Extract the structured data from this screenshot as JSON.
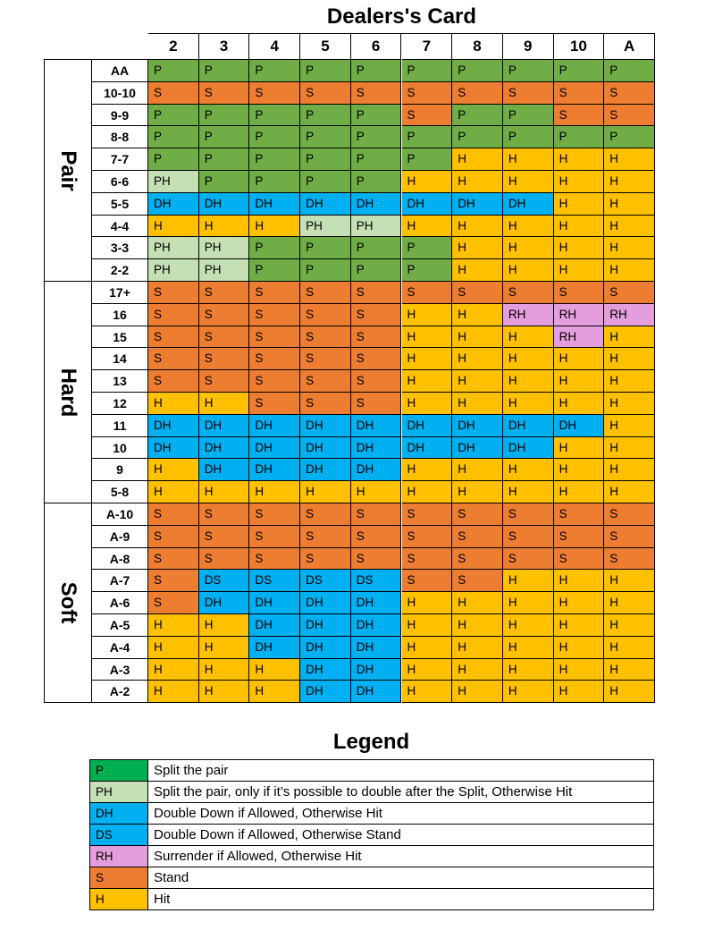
{
  "title": "Dealers's Card",
  "legend_title": "Legend",
  "colors": {
    "P": "#70AD47",
    "PH": "#C5E0B4",
    "DH": "#00B0F0",
    "DS": "#00B0F0",
    "RH": "#E59EDD",
    "S": "#ED7D31",
    "H": "#FFC000"
  },
  "legend_colors": {
    "P": "#00B050",
    "PH": "#C5E0B4",
    "DH": "#00B0F0",
    "DS": "#00B0F0",
    "RH": "#E59EDD",
    "S": "#ED7D31",
    "H": "#FFC000"
  },
  "dealer_cards": [
    "2",
    "3",
    "4",
    "5",
    "6",
    "7",
    "8",
    "9",
    "10",
    "A"
  ],
  "sections": [
    {
      "name": "Pair",
      "rows": [
        {
          "label": "AA",
          "cells": [
            "P",
            "P",
            "P",
            "P",
            "P",
            "P",
            "P",
            "P",
            "P",
            "P"
          ]
        },
        {
          "label": "10-10",
          "cells": [
            "S",
            "S",
            "S",
            "S",
            "S",
            "S",
            "S",
            "S",
            "S",
            "S"
          ]
        },
        {
          "label": "9-9",
          "cells": [
            "P",
            "P",
            "P",
            "P",
            "P",
            "S",
            "P",
            "P",
            "S",
            "S"
          ]
        },
        {
          "label": "8-8",
          "cells": [
            "P",
            "P",
            "P",
            "P",
            "P",
            "P",
            "P",
            "P",
            "P",
            "P"
          ]
        },
        {
          "label": "7-7",
          "cells": [
            "P",
            "P",
            "P",
            "P",
            "P",
            "P",
            "H",
            "H",
            "H",
            "H"
          ]
        },
        {
          "label": "6-6",
          "cells": [
            "PH",
            "P",
            "P",
            "P",
            "P",
            "H",
            "H",
            "H",
            "H",
            "H"
          ]
        },
        {
          "label": "5-5",
          "cells": [
            "DH",
            "DH",
            "DH",
            "DH",
            "DH",
            "DH",
            "DH",
            "DH",
            "H",
            "H"
          ]
        },
        {
          "label": "4-4",
          "cells": [
            "H",
            "H",
            "H",
            "PH",
            "PH",
            "H",
            "H",
            "H",
            "H",
            "H"
          ]
        },
        {
          "label": "3-3",
          "cells": [
            "PH",
            "PH",
            "P",
            "P",
            "P",
            "P",
            "H",
            "H",
            "H",
            "H"
          ]
        },
        {
          "label": "2-2",
          "cells": [
            "PH",
            "PH",
            "P",
            "P",
            "P",
            "P",
            "H",
            "H",
            "H",
            "H"
          ]
        }
      ]
    },
    {
      "name": "Hard",
      "rows": [
        {
          "label": "17+",
          "cells": [
            "S",
            "S",
            "S",
            "S",
            "S",
            "S",
            "S",
            "S",
            "S",
            "S"
          ]
        },
        {
          "label": "16",
          "cells": [
            "S",
            "S",
            "S",
            "S",
            "S",
            "H",
            "H",
            "RH",
            "RH",
            "RH"
          ]
        },
        {
          "label": "15",
          "cells": [
            "S",
            "S",
            "S",
            "S",
            "S",
            "H",
            "H",
            "H",
            "RH",
            "H"
          ]
        },
        {
          "label": "14",
          "cells": [
            "S",
            "S",
            "S",
            "S",
            "S",
            "H",
            "H",
            "H",
            "H",
            "H"
          ]
        },
        {
          "label": "13",
          "cells": [
            "S",
            "S",
            "S",
            "S",
            "S",
            "H",
            "H",
            "H",
            "H",
            "H"
          ]
        },
        {
          "label": "12",
          "cells": [
            "H",
            "H",
            "S",
            "S",
            "S",
            "H",
            "H",
            "H",
            "H",
            "H"
          ]
        },
        {
          "label": "11",
          "cells": [
            "DH",
            "DH",
            "DH",
            "DH",
            "DH",
            "DH",
            "DH",
            "DH",
            "DH",
            "H"
          ]
        },
        {
          "label": "10",
          "cells": [
            "DH",
            "DH",
            "DH",
            "DH",
            "DH",
            "DH",
            "DH",
            "DH",
            "H",
            "H"
          ]
        },
        {
          "label": "9",
          "cells": [
            "H",
            "DH",
            "DH",
            "DH",
            "DH",
            "H",
            "H",
            "H",
            "H",
            "H"
          ]
        },
        {
          "label": "5-8",
          "cells": [
            "H",
            "H",
            "H",
            "H",
            "H",
            "H",
            "H",
            "H",
            "H",
            "H"
          ]
        }
      ]
    },
    {
      "name": "Soft",
      "rows": [
        {
          "label": "A-10",
          "cells": [
            "S",
            "S",
            "S",
            "S",
            "S",
            "S",
            "S",
            "S",
            "S",
            "S"
          ]
        },
        {
          "label": "A-9",
          "cells": [
            "S",
            "S",
            "S",
            "S",
            "S",
            "S",
            "S",
            "S",
            "S",
            "S"
          ]
        },
        {
          "label": "A-8",
          "cells": [
            "S",
            "S",
            "S",
            "S",
            "S",
            "S",
            "S",
            "S",
            "S",
            "S"
          ]
        },
        {
          "label": "A-7",
          "cells": [
            "S",
            "DS",
            "DS",
            "DS",
            "DS",
            "S",
            "S",
            "H",
            "H",
            "H"
          ]
        },
        {
          "label": "A-6",
          "cells": [
            "S",
            "DH",
            "DH",
            "DH",
            "DH",
            "H",
            "H",
            "H",
            "H",
            "H"
          ]
        },
        {
          "label": "A-5",
          "cells": [
            "H",
            "H",
            "DH",
            "DH",
            "DH",
            "H",
            "H",
            "H",
            "H",
            "H"
          ]
        },
        {
          "label": "A-4",
          "cells": [
            "H",
            "H",
            "DH",
            "DH",
            "DH",
            "H",
            "H",
            "H",
            "H",
            "H"
          ]
        },
        {
          "label": "A-3",
          "cells": [
            "H",
            "H",
            "H",
            "DH",
            "DH",
            "H",
            "H",
            "H",
            "H",
            "H"
          ]
        },
        {
          "label": "A-2",
          "cells": [
            "H",
            "H",
            "H",
            "DH",
            "DH",
            "H",
            "H",
            "H",
            "H",
            "H"
          ]
        }
      ]
    }
  ],
  "legend": [
    {
      "code": "P",
      "description": "Split the pair"
    },
    {
      "code": "PH",
      "description": "Split the pair, only if it’s possible to double after the Split, Otherwise Hit"
    },
    {
      "code": "DH",
      "description": "Double Down if Allowed, Otherwise Hit"
    },
    {
      "code": "DS",
      "description": "Double Down if Allowed, Otherwise Stand"
    },
    {
      "code": "RH",
      "description": "Surrender if Allowed, Otherwise Hit"
    },
    {
      "code": "S",
      "description": "Stand"
    },
    {
      "code": "H",
      "description": "Hit"
    }
  ]
}
